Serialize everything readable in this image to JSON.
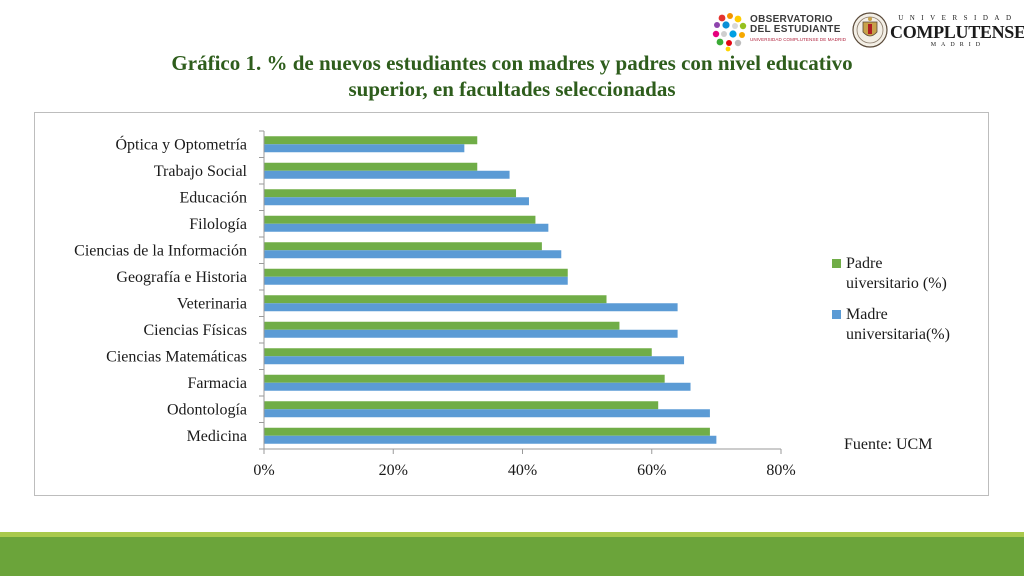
{
  "header": {
    "observatorio_lines": [
      "OBSERVATORIO",
      "DEL ESTUDIANTE",
      "UNIVERSIDAD COMPLUTENSE DE MADRID"
    ],
    "ucm_lines": [
      "UNIVERSIDAD",
      "COMPLUTENSE",
      "MADRID"
    ]
  },
  "title_lines": [
    "Gráfico 1. % de nuevos estudiantes con madres y padres con nivel educativo",
    "superior, en facultades seleccionadas"
  ],
  "colors": {
    "padre": "#70ad47",
    "madre": "#5b9bd5",
    "title": "#2e5d1c",
    "footer": "#6ba43a",
    "footer_line": "#a9c94c"
  },
  "chart_data": {
    "type": "bar",
    "orientation": "horizontal",
    "categories": [
      "Óptica y Optometría",
      "Trabajo Social",
      "Educación",
      "Filología",
      "Ciencias de la Información",
      "Geografía e Historia",
      "Veterinaria",
      "Ciencias Físicas",
      "Ciencias Matemáticas",
      "Farmacia",
      "Odontología",
      "Medicina"
    ],
    "series": [
      {
        "name": "Padre uiversitario (%)",
        "legend_lines": [
          "Padre",
          "uiversitario (%)"
        ],
        "color": "#70ad47",
        "values": [
          33,
          33,
          39,
          42,
          43,
          47,
          53,
          55,
          60,
          62,
          61,
          69
        ]
      },
      {
        "name": "Madre universitaria(%)",
        "legend_lines": [
          "Madre",
          "universitaria(%)"
        ],
        "color": "#5b9bd5",
        "values": [
          31,
          38,
          41,
          44,
          46,
          47,
          64,
          64,
          65,
          66,
          69,
          70
        ]
      }
    ],
    "xlim": [
      0,
      80
    ],
    "xticks": [
      0,
      20,
      40,
      60,
      80
    ],
    "xtick_labels": [
      "0%",
      "20%",
      "40%",
      "60%",
      "80%"
    ],
    "grid": false,
    "legend_position": "right",
    "annotation": "Fuente: UCM"
  }
}
